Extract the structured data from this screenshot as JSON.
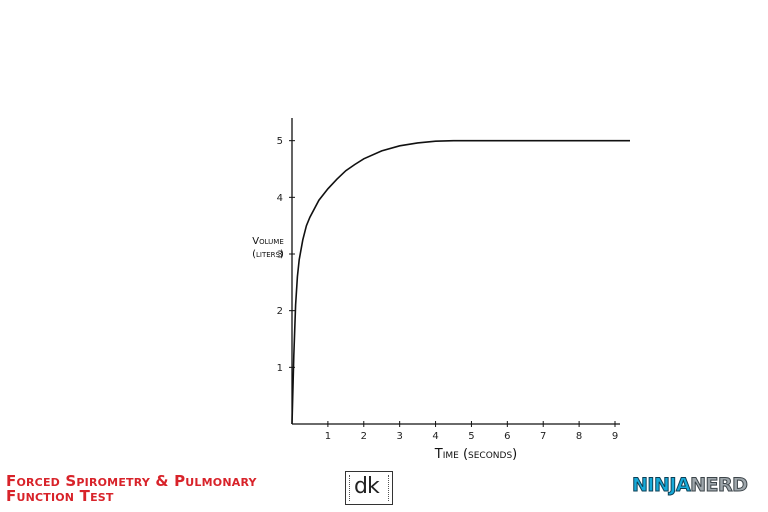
{
  "footer": {
    "title_line1": "Forced Spirometry & Pulmonary",
    "title_line2": "Function Test",
    "logo_left_text": "dk",
    "logo_right_text_1": "NINJA",
    "logo_right_text_2": "NERD"
  },
  "colors": {
    "title": "#d8232a",
    "curve": "#111111",
    "ninja": "#16a9d8",
    "nerd": "#9ea6ab"
  },
  "chart_data": {
    "type": "line",
    "xlabel": "Time (seconds)",
    "ylabel_line1": "Volume",
    "ylabel_line2": "(liters)",
    "xlim": [
      0,
      9
    ],
    "ylim": [
      0,
      5.7
    ],
    "x_ticks": [
      "1",
      "2",
      "3",
      "4",
      "5",
      "6",
      "7",
      "8",
      "9"
    ],
    "y_ticks": [
      "1",
      "2",
      "3",
      "4",
      "5"
    ],
    "grid": false,
    "series": [
      {
        "x": [
          0,
          0.05,
          0.1,
          0.15,
          0.2,
          0.3,
          0.4,
          0.5,
          0.75,
          1,
          1.25,
          1.5,
          1.75,
          2,
          2.5,
          3,
          3.5,
          4,
          4.5,
          5,
          6,
          7,
          8,
          9
        ],
        "values": [
          0,
          1.2,
          2.1,
          2.6,
          2.9,
          3.25,
          3.5,
          3.65,
          3.95,
          4.15,
          4.32,
          4.47,
          4.58,
          4.68,
          4.82,
          4.91,
          4.96,
          4.99,
          5.0,
          5.0,
          5.0,
          5.0,
          5.0,
          5.0
        ]
      }
    ]
  }
}
